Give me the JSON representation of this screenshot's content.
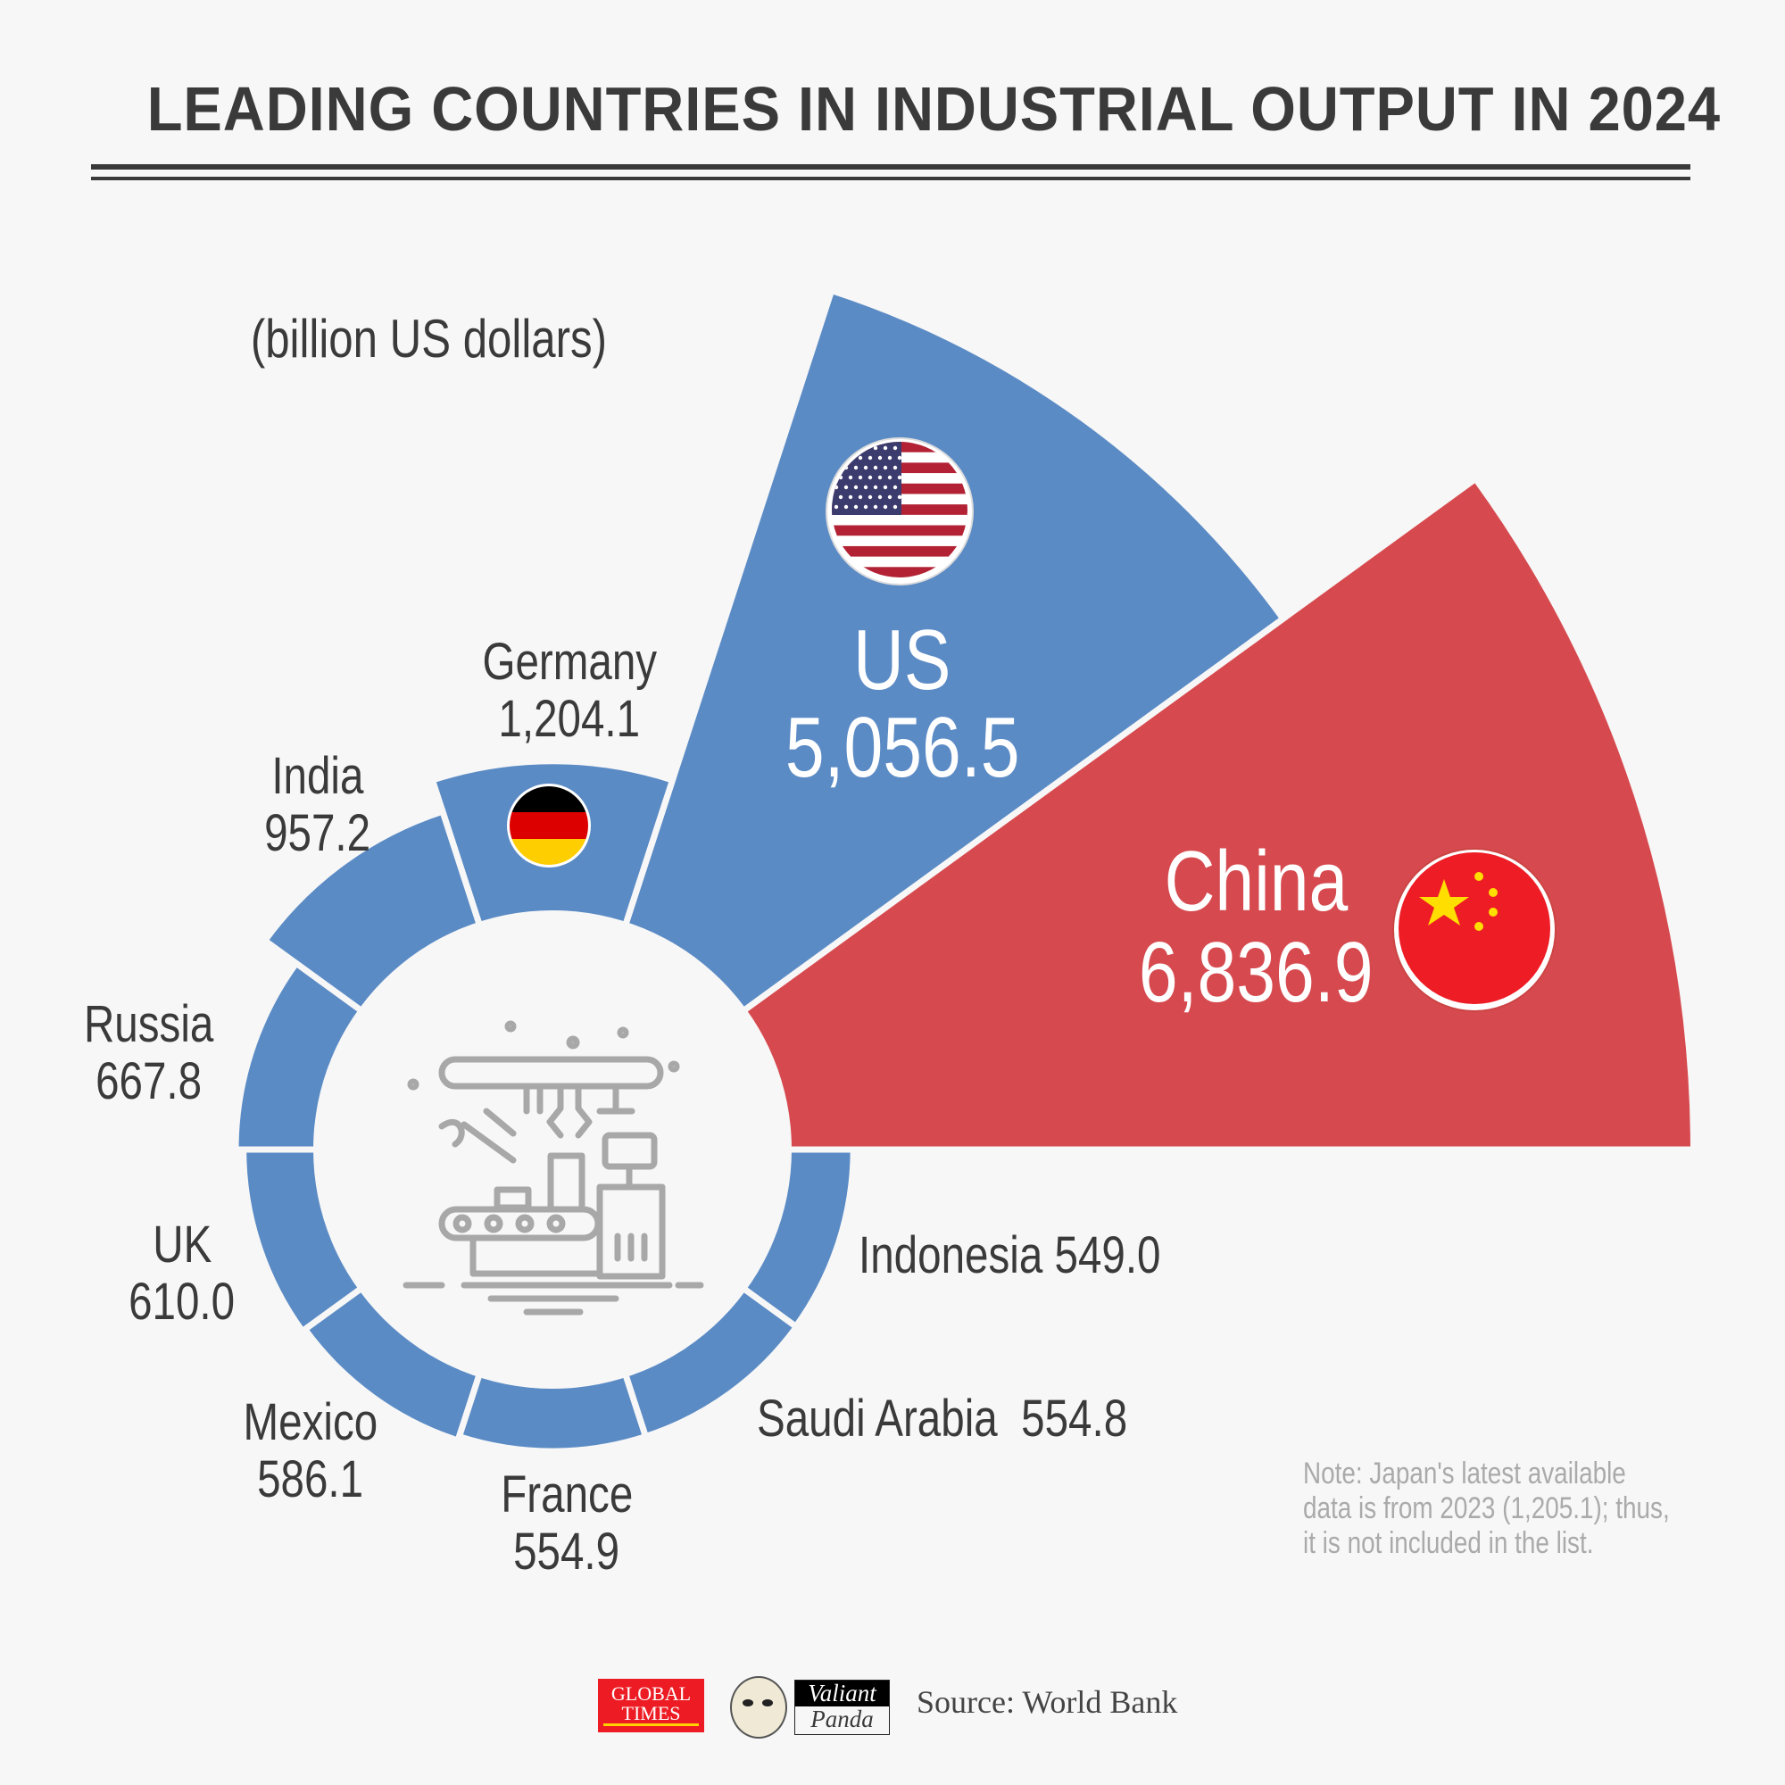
{
  "title": "LEADING COUNTRIES IN INDUSTRIAL OUTPUT IN 2024",
  "unit_label": "(billion US dollars)",
  "chart_data": {
    "type": "rose",
    "title": "LEADING COUNTRIES IN INDUSTRIAL OUTPUT IN 2024",
    "unit": "(billion US dollars)",
    "categories": [
      "China",
      "US",
      "Germany",
      "India",
      "Russia",
      "UK",
      "Mexico",
      "France",
      "Saudi Arabia",
      "Indonesia"
    ],
    "values": [
      6836.9,
      5056.5,
      1204.1,
      957.2,
      667.8,
      610.0,
      586.1,
      554.9,
      554.8,
      549.0
    ],
    "colors": [
      "#d64a4f",
      "#5b8bc5",
      "#5b8bc5",
      "#5b8bc5",
      "#5b8bc5",
      "#5b8bc5",
      "#5b8bc5",
      "#5b8bc5",
      "#5b8bc5",
      "#5b8bc5"
    ]
  },
  "flags": {
    "china": "china-flag-icon",
    "us": "us-flag-icon",
    "germany": "germany-flag-icon"
  },
  "center_icon": "factory-conveyor-icon",
  "note": [
    "Note: Japan's latest available",
    "data is from 2023 (1,205.1); thus,",
    "it is not included in the list."
  ],
  "footer": {
    "logo1": "GLOBAL TIMES",
    "logo2": "Valiant Panda",
    "source": "Source: World Bank"
  },
  "colors": {
    "background": "#f7f7f7",
    "blue": "#5b8bc5",
    "red": "#d64a4f",
    "text": "#3a3a3a"
  }
}
